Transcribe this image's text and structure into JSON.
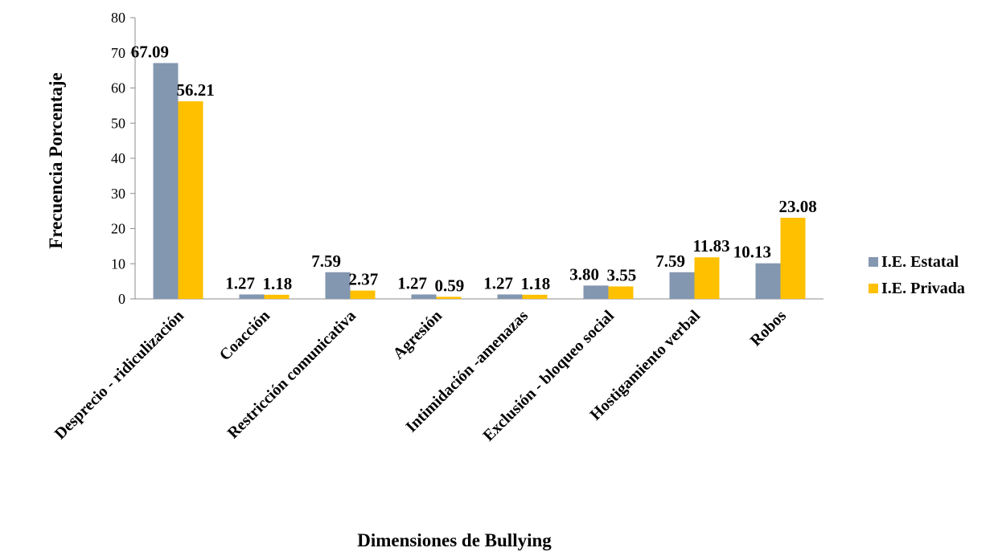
{
  "chart_data": {
    "type": "bar",
    "title": "",
    "xlabel": "Dimensiones de Bullying",
    "ylabel": "Frecuencia  Porcentaje",
    "ylim": [
      0,
      80
    ],
    "yticks": [
      "0",
      "10",
      "20",
      "30",
      "40",
      "50",
      "60",
      "70",
      "80"
    ],
    "grid": false,
    "legend_position": "right",
    "categories": [
      "Desprecio - ridiculización",
      "Coacción",
      "Restricción comunicativa",
      "Agresión",
      "Intimidación -amenazas",
      "Exclusión - bloqueo social",
      "Hostigamiento verbal",
      "Robos"
    ],
    "series": [
      {
        "name": "I.E. Estatal",
        "color": "#8497B0",
        "values": [
          67.09,
          1.27,
          7.59,
          1.27,
          1.27,
          3.8,
          7.59,
          10.13
        ],
        "labels": [
          "67.09",
          "1.27",
          "7.59",
          "1.27",
          "1.27",
          "3.80",
          "7.59",
          "10.13"
        ]
      },
      {
        "name": "I.E. Privada",
        "color": "#FFC000",
        "values": [
          56.21,
          1.18,
          2.37,
          0.59,
          1.18,
          3.55,
          11.83,
          23.08
        ],
        "labels": [
          "56.21",
          "1.18",
          "2.37",
          "0.59",
          "1.18",
          "3.55",
          "11.83",
          "23.08"
        ]
      }
    ]
  }
}
